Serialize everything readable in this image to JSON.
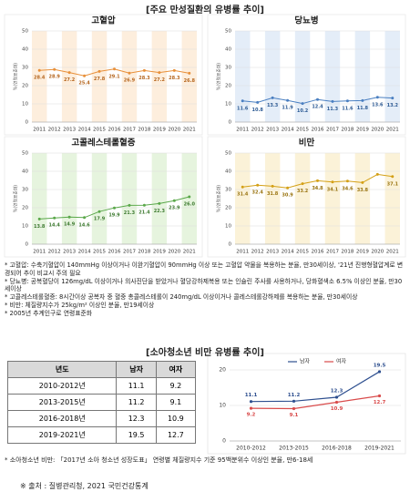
{
  "title": "[주요 만성질환의 유병률 추이]",
  "chart_data": [
    {
      "type": "line",
      "title": "고혈압",
      "y_label": "%(연령표준화)",
      "color": "#e8903a",
      "label_color": "#b5651d",
      "band_color": "#fdeedd",
      "categories": [
        "2011",
        "2012",
        "2013",
        "2014",
        "2015",
        "2016",
        "2017",
        "2018",
        "2019",
        "2020",
        "2021"
      ],
      "values": [
        28.4,
        28.9,
        27.2,
        25.4,
        27.8,
        29.1,
        26.9,
        28.3,
        27.2,
        28.3,
        26.8
      ],
      "ylim": [
        0,
        50
      ],
      "yticks": [
        0,
        10,
        20,
        30,
        40,
        50
      ],
      "grid": true
    },
    {
      "type": "line",
      "title": "당뇨병",
      "y_label": "%(연령표준화)",
      "color": "#4a7fc1",
      "label_color": "#2c5a94",
      "band_color": "#e4edf8",
      "categories": [
        "2011",
        "2012",
        "2013",
        "2014",
        "2015",
        "2016",
        "2017",
        "2018",
        "2019",
        "2020",
        "2021"
      ],
      "values": [
        11.6,
        10.8,
        13.3,
        11.9,
        10.2,
        12.4,
        11.3,
        11.6,
        11.8,
        13.6,
        13.2
      ],
      "ylim": [
        0,
        50
      ],
      "yticks": [
        0,
        10,
        20,
        30,
        40,
        50
      ],
      "grid": true
    },
    {
      "type": "line",
      "title": "고콜레스테롤혈증",
      "y_label": "%(연령표준화)",
      "color": "#5aa84a",
      "label_color": "#3d7a30",
      "band_color": "#e6f4de",
      "categories": [
        "2011",
        "2012",
        "2013",
        "2014",
        "2015",
        "2016",
        "2017",
        "2018",
        "2019",
        "2020",
        "2021"
      ],
      "values": [
        13.8,
        14.4,
        14.9,
        14.6,
        17.9,
        19.9,
        21.3,
        21.4,
        22.3,
        23.9,
        26
      ],
      "value_labels": [
        "13.8",
        "14.4",
        "14.9",
        "14.6",
        "17.9",
        "19.9",
        "21.3",
        "21.4",
        "22.3",
        "23.9",
        "26.0"
      ],
      "ylim": [
        0,
        50
      ],
      "yticks": [
        0,
        10,
        20,
        30,
        40,
        50
      ],
      "grid": true
    },
    {
      "type": "line",
      "title": "비만",
      "y_label": "%(연령표준화)",
      "color": "#d4a017",
      "label_color": "#9a7410",
      "band_color": "#fbf2d8",
      "categories": [
        "2011",
        "2012",
        "2013",
        "2014",
        "2015",
        "2016",
        "2017",
        "2018",
        "2019",
        "2020",
        "2021"
      ],
      "values": [
        31.4,
        32.4,
        31.8,
        30.9,
        33.2,
        34.8,
        34.1,
        34.6,
        33.8,
        38.3,
        37.1
      ],
      "value_labels": [
        "31.4",
        "32.4",
        "31.8",
        "30.9",
        "33.2",
        "34.8",
        "34.1",
        "34.6",
        "33.8",
        null,
        "37.1"
      ],
      "ylim": [
        0,
        50
      ],
      "yticks": [
        0,
        10,
        20,
        30,
        40,
        50
      ],
      "grid": true
    },
    {
      "type": "line",
      "categories": [
        "2010-2012",
        "2013-2015",
        "2016-2018",
        "2019-2021"
      ],
      "series": [
        {
          "name": "남자",
          "color": "#2e4f8f",
          "values": [
            11.1,
            11.2,
            12.3,
            19.5
          ]
        },
        {
          "name": "여자",
          "color": "#d94b4b",
          "values": [
            9.2,
            9.1,
            10.9,
            12.7
          ]
        }
      ],
      "ylim": [
        0,
        20
      ],
      "yticks": [
        0,
        10,
        20
      ],
      "grid": true,
      "legend": "top"
    }
  ],
  "notes": [
    "* 고혈압: 수축기혈압이 140mmHg 이상이거나 이완기혈압이 90mmHg 이상 또는 고혈압 약물을 복용하는 분율, 만30세이상, '21년 진행형혈압계로 변경되어 추이 비교시 주의 필요",
    "* 당뇨병: 공복혈당이 126mg/dL 이상이거나 의사진단을 받았거나 혈당강하제복용 또는 인슐린 주사를 사용하거나, 당화혈색소 6.5% 이상인 분율, 만30세이상",
    "* 고콜레스테롤혈증: 8시간이상 공복자 중 혈중 총콜레스테롤이 240mg/dL 이상이거나 콜레스테롤강하제를 복용하는 분율, 만30세이상",
    "* 비만: 체질량지수가 25kg/m² 이상인 분율, 만19세이상",
    "* 2005년 추계인구로 연령표준화"
  ],
  "section2_title": "[소아청소년 비만 유병률 추이]",
  "table": {
    "header": [
      "년도",
      "남자",
      "여자"
    ],
    "rows": [
      [
        "2010-2012년",
        11.1,
        9.2
      ],
      [
        "2013-2015년",
        11.2,
        9.1
      ],
      [
        "2016-2018년",
        12.3,
        10.9
      ],
      [
        "2019-2021년",
        19.5,
        12.7
      ]
    ]
  },
  "note2": "* 소아청소년 비만: 「2017년 소아 청소년 성장도표」 연령별 체질량지수 기준 95백분위수 이상인 분율, 만6-18세",
  "source": "※ 출처 : 질병관리청, 2021 국민건강통계"
}
